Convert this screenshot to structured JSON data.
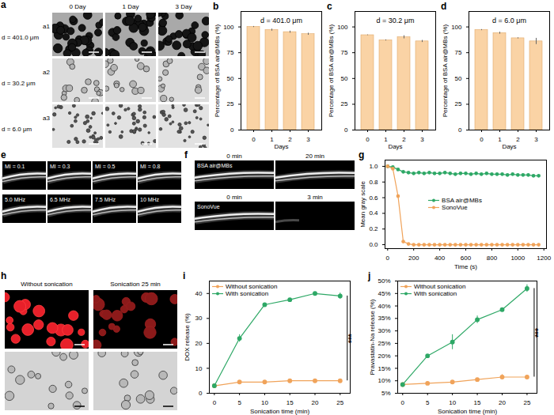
{
  "chart_data": [
    {
      "panel": "b",
      "type": "bar",
      "title": "d = 401.0 μm",
      "x_label": "Days",
      "y_label": "Percentage of BSA air@MBs (%)",
      "categories": [
        "0",
        "1",
        "2",
        "3"
      ],
      "values": [
        100,
        97,
        95,
        93
      ],
      "errors": [
        0.5,
        1,
        1,
        1
      ],
      "color": "#fad3a5",
      "ylim": [
        0,
        115
      ],
      "yticks": [
        0,
        25,
        50,
        75,
        100
      ]
    },
    {
      "panel": "c",
      "type": "bar",
      "title": "d = 30.2 μm",
      "x_label": "Days",
      "y_label": "Percentage of BSA air@MBs (%)",
      "categories": [
        "0",
        "1",
        "2",
        "3"
      ],
      "values": [
        92,
        87,
        90,
        86
      ],
      "errors": [
        0.3,
        0.5,
        1.5,
        1
      ],
      "color": "#fad3a5",
      "ylim": [
        0,
        115
      ],
      "yticks": [
        0,
        25,
        50,
        75,
        100
      ]
    },
    {
      "panel": "d",
      "type": "bar",
      "title": "d = 6.0 μm",
      "x_label": "Days",
      "y_label": "Percentage of BSA air@MBs (%)",
      "categories": [
        "0",
        "1",
        "2",
        "3"
      ],
      "values": [
        97,
        94,
        89,
        86
      ],
      "errors": [
        0.5,
        1,
        0.5,
        3
      ],
      "color": "#fad3a5",
      "ylim": [
        0,
        115
      ],
      "yticks": [
        0,
        25,
        50,
        75,
        100
      ]
    },
    {
      "panel": "g",
      "type": "line",
      "x_label": "Time (s)",
      "y_label": "Mean gray scale",
      "x": [
        0,
        40,
        80,
        120,
        160,
        200,
        240,
        280,
        320,
        360,
        400,
        440,
        480,
        520,
        560,
        600,
        640,
        680,
        720,
        760,
        800,
        840,
        880,
        920,
        960,
        1000,
        1040,
        1080,
        1120,
        1160
      ],
      "series": [
        {
          "name": "BSA air@MBs",
          "color": "#2ea866",
          "marker": "circle",
          "values": [
            1,
            0.99,
            0.96,
            0.93,
            0.92,
            0.91,
            0.92,
            0.91,
            0.92,
            0.91,
            0.91,
            0.92,
            0.91,
            0.9,
            0.91,
            0.91,
            0.9,
            0.91,
            0.9,
            0.91,
            0.9,
            0.9,
            0.9,
            0.89,
            0.9,
            0.89,
            0.89,
            0.89,
            0.88,
            0.88
          ]
        },
        {
          "name": "SonoVue",
          "color": "#f0a35a",
          "marker": "circle",
          "values": [
            1,
            0.97,
            0.62,
            0.04,
            0.01,
            0,
            0,
            0,
            0,
            0,
            0,
            0,
            0,
            0,
            0,
            0,
            0,
            0,
            0,
            0,
            0,
            0,
            0,
            0,
            0,
            0,
            0,
            0,
            0,
            0
          ]
        }
      ],
      "xlim": [
        -20,
        1220
      ],
      "xticks": [
        0,
        200,
        400,
        600,
        800,
        1000,
        1200
      ],
      "ylim": [
        -0.05,
        1.08
      ],
      "yticks": [
        {
          "value": 0,
          "label": "0.0"
        },
        0.2,
        0.4,
        0.6,
        0.8,
        {
          "value": 1,
          "label": "1.0"
        }
      ],
      "legend": "center"
    },
    {
      "panel": "i",
      "type": "line",
      "x_label": "Sonication time (min)",
      "y_label": "DOX release (%)",
      "x": [
        0,
        5,
        10,
        15,
        20,
        25
      ],
      "series": [
        {
          "name": "Without sonication",
          "color": "#f0a35a",
          "marker": "circle",
          "values": [
            3,
            4.5,
            4.5,
            5,
            5,
            5
          ],
          "errors": [
            0.3,
            0.5,
            0.5,
            0.5,
            0.5,
            0.5
          ]
        },
        {
          "name": "With sonication",
          "color": "#2ea866",
          "marker": "circle",
          "values": [
            3,
            22,
            35.5,
            37.5,
            40,
            39
          ],
          "errors": [
            0.3,
            1.5,
            0.5,
            0.5,
            0.5,
            1.2
          ]
        }
      ],
      "xlim": [
        -1,
        27
      ],
      "xticks": [
        0,
        5,
        10,
        15,
        20,
        25
      ],
      "ylim": [
        0,
        45
      ],
      "yticks": [
        0,
        10,
        20,
        30,
        40
      ],
      "legend": "upper left",
      "annotations": [
        {
          "text": "***",
          "x": 25,
          "y_from": 5,
          "y_to": 39
        }
      ]
    },
    {
      "panel": "j",
      "type": "line",
      "x_label": "Sonication time (min)",
      "y_label": "Pravastatin-Na release (%)",
      "x": [
        0,
        5,
        10,
        15,
        20,
        25
      ],
      "series": [
        {
          "name": "Without sonication",
          "color": "#f0a35a",
          "marker": "circle",
          "values": [
            8.5,
            9,
            9.5,
            10.5,
            11.5,
            11.5
          ],
          "errors": [
            0.3,
            0.3,
            0.3,
            0.5,
            1,
            0.5
          ]
        },
        {
          "name": "With sonication",
          "color": "#2ea866",
          "marker": "circle",
          "values": [
            8.5,
            20,
            25.5,
            34.5,
            38.5,
            47
          ],
          "errors": [
            0.3,
            0.5,
            3,
            1.5,
            0.5,
            1.5
          ]
        }
      ],
      "xlim": [
        -1,
        27
      ],
      "xticks": [
        0,
        5,
        10,
        15,
        20,
        25
      ],
      "ylim": [
        5,
        50
      ],
      "yticks": [
        {
          "value": 5,
          "label": "5%"
        },
        {
          "value": 10,
          "label": "10%"
        },
        {
          "value": 15,
          "label": "15%"
        },
        {
          "value": 20,
          "label": "20%"
        },
        {
          "value": 25,
          "label": "25%"
        },
        {
          "value": 30,
          "label": "30%"
        },
        {
          "value": 35,
          "label": "35%"
        },
        {
          "value": 40,
          "label": "40%"
        },
        {
          "value": 45,
          "label": "45%"
        },
        {
          "value": 50,
          "label": "50%"
        }
      ],
      "legend": "upper left",
      "annotations": [
        {
          "text": "***",
          "x": 25,
          "y_from": 11.5,
          "y_to": 47
        }
      ]
    }
  ],
  "image_panels": [
    {
      "panel": "a",
      "columns": [
        "0 Day",
        "1 Day",
        "3 Day"
      ],
      "rows": [
        {
          "tag": "a1",
          "label": "d = 401.0 μm"
        },
        {
          "tag": "a2",
          "label": "d = 30.2 μm"
        },
        {
          "tag": "a3",
          "label": "d = 6.0 μm"
        }
      ]
    },
    {
      "panel": "e",
      "rows": [
        [
          "MI = 0.1",
          "MI = 0.3",
          "MI = 0.5",
          "MI = 0.8"
        ],
        [
          "5.0 MHz",
          "6.5 MHz",
          "7.5 MHz",
          "10 MHz"
        ]
      ]
    },
    {
      "panel": "f",
      "rows": [
        {
          "name": "BSA air@MBs",
          "times": [
            "0 min",
            "20 min"
          ]
        },
        {
          "name": "SonoVue",
          "times": [
            "0 min",
            "3 min"
          ]
        }
      ]
    },
    {
      "panel": "h",
      "columns": [
        "Without sonication",
        "Sonication 25 min"
      ]
    }
  ]
}
